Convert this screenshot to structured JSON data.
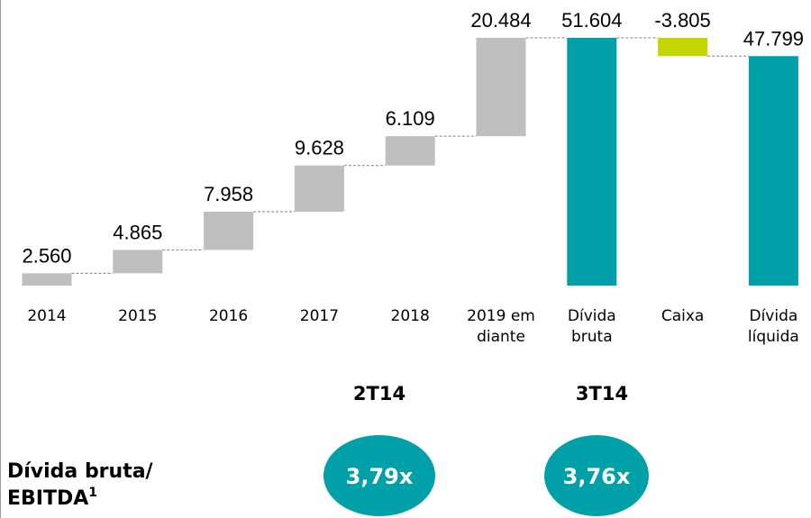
{
  "chart_data": {
    "type": "waterfall",
    "categories": [
      "2014",
      "2015",
      "2016",
      "2017",
      "2018",
      "2019 em diante",
      "Dívida bruta",
      "Caixa",
      "Dívida líquida"
    ],
    "values": [
      2560,
      4865,
      7958,
      9628,
      6109,
      20484,
      51604,
      -3805,
      47799
    ],
    "value_labels": [
      "2.560",
      "4.865",
      "7.958",
      "9.628",
      "6.109",
      "20.484",
      "51.604",
      "-3.805",
      "47.799"
    ],
    "measure": [
      "relative",
      "relative",
      "relative",
      "relative",
      "relative",
      "relative",
      "total",
      "relative",
      "total"
    ],
    "colors": [
      "#bfbfbf",
      "#bfbfbf",
      "#bfbfbf",
      "#bfbfbf",
      "#bfbfbf",
      "#bfbfbf",
      "#00a0a8",
      "#c4d600",
      "#00a0a8"
    ]
  },
  "ratio": {
    "label_line1": "Dívida bruta/",
    "label_line2": "EBITDA",
    "superscript": "1",
    "items": [
      {
        "period": "2T14",
        "value": "3,79x"
      },
      {
        "period": "3T14",
        "value": "3,76x"
      }
    ]
  }
}
